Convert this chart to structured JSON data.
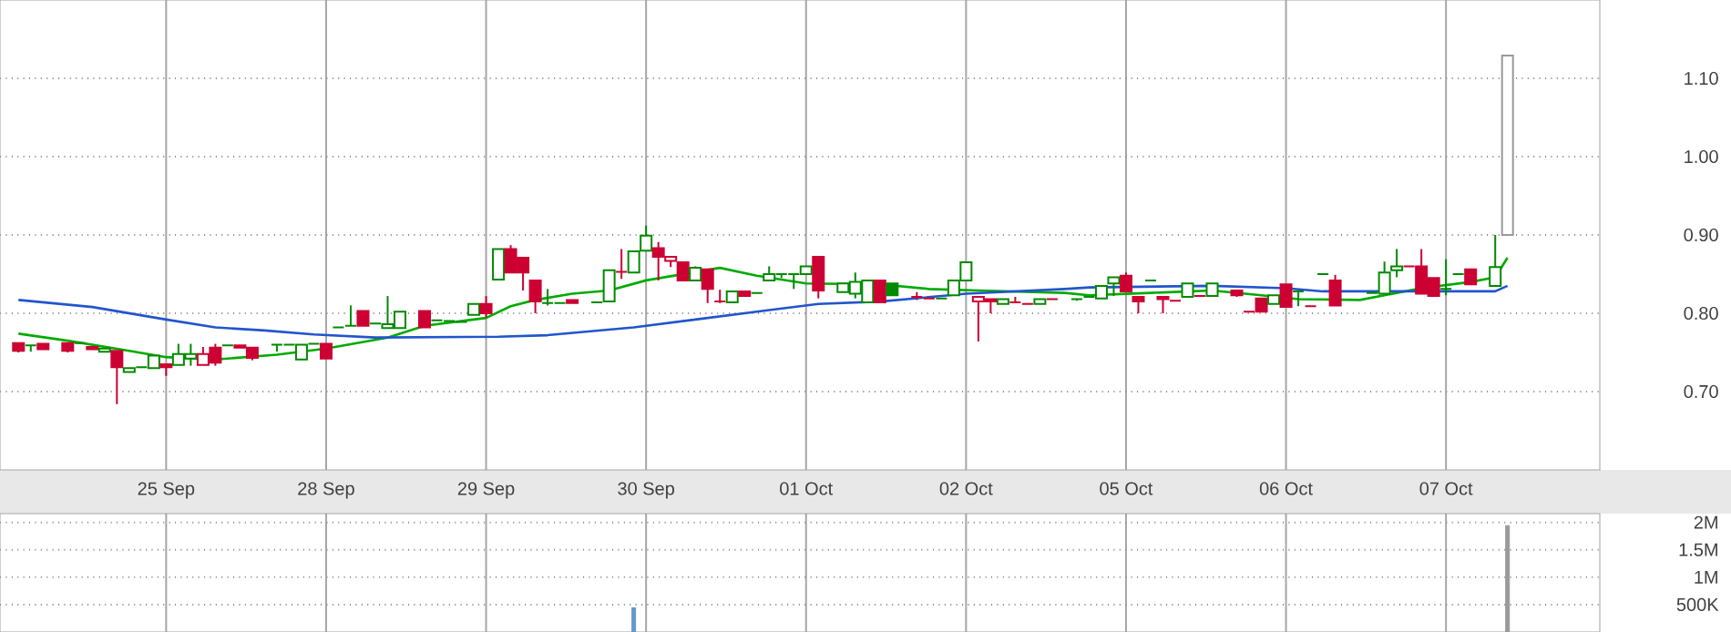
{
  "chart_data": [
    {
      "type": "candlestick",
      "categories": [
        null,
        null,
        null,
        null,
        null,
        null,
        null,
        null,
        null,
        null,
        null,
        null,
        null,
        "25 Sep",
        null,
        null,
        null,
        null,
        null,
        null,
        null,
        null,
        null,
        null,
        null,
        null,
        "28 Sep",
        null,
        null,
        null,
        null,
        null,
        null,
        null,
        null,
        null,
        null,
        null,
        null,
        "29 Sep",
        null,
        null,
        null,
        null,
        null,
        null,
        null,
        null,
        null,
        null,
        null,
        null,
        "30 Sep",
        null,
        null,
        null,
        null,
        null,
        null,
        null,
        null,
        null,
        null,
        null,
        null,
        "01 Oct",
        null,
        null,
        null,
        null,
        null,
        null,
        null,
        null,
        null,
        null,
        null,
        null,
        "02 Oct",
        null,
        null,
        null,
        null,
        null,
        null,
        null,
        null,
        null,
        null,
        null,
        null,
        "05 Oct",
        null,
        null,
        null,
        null,
        null,
        null,
        null,
        null,
        null,
        null,
        null,
        null,
        "06 Oct",
        null,
        null,
        null,
        null,
        null,
        null,
        null,
        null,
        null,
        null,
        null,
        null,
        "07 Oct",
        null,
        null,
        null,
        null,
        null,
        null,
        null,
        null,
        null,
        null,
        null,
        null
      ],
      "ohlc": [
        null,
        [
          0.762,
          0.762,
          0.75,
          0.752
        ],
        [
          0.759,
          0.759,
          0.751,
          0.759
        ],
        [
          0.761,
          0.761,
          0.754,
          0.754
        ],
        null,
        [
          0.762,
          0.762,
          0.75,
          0.752
        ],
        [
          0.762,
          0.762,
          0.762,
          0.762
        ],
        [
          0.757,
          0.757,
          0.754,
          0.754
        ],
        [
          0.751,
          0.755,
          0.751,
          0.755
        ],
        [
          0.752,
          0.752,
          0.684,
          0.731
        ],
        [
          0.725,
          0.73,
          0.725,
          0.73
        ],
        [
          0.731,
          0.731,
          0.731,
          0.731
        ],
        [
          0.73,
          0.746,
          0.73,
          0.746
        ],
        [
          0.735,
          0.735,
          0.72,
          0.731
        ],
        [
          0.734,
          0.761,
          0.734,
          0.748
        ],
        [
          0.742,
          0.761,
          0.733,
          0.748
        ],
        [
          0.734,
          0.757,
          0.734,
          0.748
        ],
        [
          0.756,
          0.761,
          0.733,
          0.737
        ],
        [
          0.759,
          0.759,
          0.759,
          0.759
        ],
        [
          0.759,
          0.759,
          0.756,
          0.756
        ],
        [
          0.756,
          0.756,
          0.74,
          0.743
        ],
        null,
        [
          0.76,
          0.76,
          0.751,
          0.76
        ],
        [
          0.76,
          0.76,
          0.76,
          0.76
        ],
        [
          0.741,
          0.76,
          0.741,
          0.76
        ],
        [
          0.761,
          0.761,
          0.761,
          0.761
        ],
        [
          0.761,
          0.761,
          0.742,
          0.742
        ],
        [
          0.782,
          0.782,
          0.782,
          0.782
        ],
        [
          0.784,
          0.81,
          0.784,
          0.784
        ],
        [
          0.803,
          0.803,
          0.784,
          0.784
        ],
        [
          0.787,
          0.787,
          0.787,
          0.787
        ],
        [
          0.781,
          0.822,
          0.781,
          0.786
        ],
        [
          0.781,
          0.802,
          0.781,
          0.802
        ],
        null,
        [
          0.803,
          0.803,
          0.782,
          0.782
        ],
        [
          0.791,
          0.791,
          0.791,
          0.791
        ],
        [
          0.79,
          0.79,
          0.79,
          0.79
        ],
        [
          0.789,
          0.789,
          0.789,
          0.789
        ],
        [
          0.798,
          0.812,
          0.798,
          0.812
        ],
        [
          0.812,
          0.822,
          0.795,
          0.8
        ],
        [
          0.843,
          0.882,
          0.843,
          0.882
        ],
        [
          0.882,
          0.887,
          0.852,
          0.852
        ],
        [
          0.871,
          0.871,
          0.829,
          0.852
        ],
        [
          0.842,
          0.842,
          0.8,
          0.815
        ],
        [
          0.813,
          0.831,
          0.81,
          0.813
        ],
        [
          0.813,
          0.813,
          0.813,
          0.813
        ],
        [
          0.817,
          0.817,
          0.813,
          0.813
        ],
        null,
        [
          0.814,
          0.814,
          0.814,
          0.814
        ],
        [
          0.815,
          0.855,
          0.815,
          0.855
        ],
        [
          0.853,
          0.882,
          0.844,
          0.853
        ],
        [
          0.852,
          0.879,
          0.852,
          0.879
        ],
        [
          0.88,
          0.912,
          0.88,
          0.899
        ],
        [
          0.883,
          0.891,
          0.842,
          0.872
        ],
        [
          0.867,
          0.872,
          0.859,
          0.872
        ],
        [
          0.865,
          0.865,
          0.842,
          0.842
        ],
        [
          0.842,
          0.86,
          0.842,
          0.858
        ],
        [
          0.856,
          0.856,
          0.813,
          0.831
        ],
        [
          0.815,
          0.83,
          0.813,
          0.815
        ],
        [
          0.814,
          0.828,
          0.814,
          0.828
        ],
        [
          0.828,
          0.828,
          0.822,
          0.822
        ],
        [
          0.826,
          0.826,
          0.826,
          0.826
        ],
        [
          0.842,
          0.86,
          0.842,
          0.85
        ],
        [
          0.85,
          0.85,
          0.845,
          0.85
        ],
        [
          0.85,
          0.85,
          0.831,
          0.85
        ],
        [
          0.85,
          0.86,
          0.85,
          0.86
        ],
        [
          0.872,
          0.872,
          0.819,
          0.829
        ],
        null,
        [
          0.827,
          0.838,
          0.827,
          0.838
        ],
        [
          0.825,
          0.852,
          0.819,
          0.84
        ],
        [
          0.814,
          0.842,
          0.814,
          0.842
        ],
        [
          0.842,
          0.842,
          0.814,
          0.814
        ],
        [
          0.838,
          0.838,
          0.823,
          0.823
        ],
        null,
        [
          0.821,
          0.827,
          0.817,
          0.821
        ],
        [
          0.819,
          0.819,
          0.819,
          0.819
        ],
        [
          0.819,
          0.819,
          0.819,
          0.819
        ],
        [
          0.823,
          0.842,
          0.823,
          0.842
        ],
        [
          0.842,
          0.865,
          0.842,
          0.865
        ],
        [
          0.815,
          0.821,
          0.764,
          0.821
        ],
        [
          0.818,
          0.818,
          0.8,
          0.815
        ],
        [
          0.812,
          0.818,
          0.812,
          0.818
        ],
        [
          0.814,
          0.821,
          0.814,
          0.814
        ],
        [
          0.812,
          0.812,
          0.812,
          0.812
        ],
        [
          0.812,
          0.818,
          0.812,
          0.818
        ],
        [
          0.818,
          0.818,
          0.818,
          0.818
        ],
        null,
        [
          0.818,
          0.818,
          0.816,
          0.818
        ],
        [
          0.821,
          0.821,
          0.821,
          0.821
        ],
        [
          0.819,
          0.835,
          0.819,
          0.835
        ],
        [
          0.838,
          0.846,
          0.822,
          0.846
        ],
        [
          0.848,
          0.852,
          0.828,
          0.828
        ],
        [
          0.821,
          0.821,
          0.8,
          0.815
        ],
        [
          0.842,
          0.842,
          0.842,
          0.842
        ],
        [
          0.821,
          0.821,
          0.8,
          0.818
        ],
        [
          0.816,
          0.816,
          0.816,
          0.816
        ],
        [
          0.821,
          0.838,
          0.821,
          0.838
        ],
        [
          0.822,
          0.822,
          0.822,
          0.822
        ],
        [
          0.822,
          0.838,
          0.822,
          0.838
        ],
        null,
        [
          0.829,
          0.829,
          0.821,
          0.823
        ],
        [
          0.802,
          0.802,
          0.802,
          0.802
        ],
        [
          0.819,
          0.819,
          0.802,
          0.802
        ],
        [
          0.812,
          0.823,
          0.812,
          0.823
        ],
        [
          0.837,
          0.837,
          0.808,
          0.808
        ],
        [
          0.828,
          0.828,
          0.809,
          0.828
        ],
        [
          0.809,
          0.809,
          0.809,
          0.809
        ],
        [
          0.85,
          0.85,
          0.85,
          0.85
        ],
        [
          0.842,
          0.849,
          0.81,
          0.81
        ],
        null,
        null,
        [
          0.826,
          0.826,
          0.826,
          0.826
        ],
        [
          0.825,
          0.866,
          0.825,
          0.852
        ],
        [
          0.855,
          0.882,
          0.846,
          0.86
        ],
        [
          0.86,
          0.86,
          0.86,
          0.86
        ],
        [
          0.86,
          0.882,
          0.825,
          0.825
        ],
        [
          0.845,
          0.845,
          0.822,
          0.822
        ],
        [
          0.831,
          0.869,
          0.823,
          0.831
        ],
        [
          0.85,
          0.85,
          0.85,
          0.85
        ],
        [
          0.856,
          0.856,
          0.837,
          0.837
        ],
        null,
        [
          0.835,
          0.9,
          0.835,
          0.859
        ],
        [
          0.9,
          1.129,
          0.9,
          1.129
        ],
        null,
        null,
        null,
        null,
        null,
        null,
        null
      ],
      "colors": [
        null,
        "#cc0033",
        "#008a00",
        "#cc0033",
        null,
        "#cc0033",
        "#008a00",
        "#cc0033",
        "#008a00",
        "#cc0033",
        "#008a00",
        "#008a00",
        "#008a00",
        "#cc0033",
        "#008a00",
        "#008a00",
        "#cc0033",
        "#cc0033",
        "#008a00",
        "#cc0033",
        "#cc0033",
        null,
        "#008a00",
        "#008a00",
        "#008a00",
        "#008a00",
        "#cc0033",
        "#008a00",
        "#008a00",
        "#cc0033",
        "#008a00",
        "#008a00",
        "#008a00",
        null,
        "#cc0033",
        "#008a00",
        "#008a00",
        "#008a00",
        "#008a00",
        "#cc0033",
        "#008a00",
        "#cc0033",
        "#cc0033",
        "#cc0033",
        "#008a00",
        "#008a00",
        "#cc0033",
        null,
        "#008a00",
        "#008a00",
        "#cc0033",
        "#008a00",
        "#008a00",
        "#cc0033",
        "#cc0033",
        "#cc0033",
        "#008a00",
        "#cc0033",
        "#cc0033",
        "#008a00",
        "#cc0033",
        "#008a00",
        "#008a00",
        "#008a00",
        "#008a00",
        "#008a00",
        "#cc0033",
        null,
        "#008a00",
        "#008a00",
        "#008a00",
        "#cc0033",
        "#008a00",
        null,
        "#cc0033",
        "#cc0033",
        "#008a00",
        "#008a00",
        "#008a00",
        "#cc0033",
        "#cc0033",
        "#008a00",
        "#cc0033",
        "#cc0033",
        "#008a00",
        "#cc0033",
        null,
        "#008a00",
        "#008a00",
        "#008a00",
        "#008a00",
        "#cc0033",
        "#cc0033",
        "#008a00",
        "#cc0033",
        "#cc0033",
        "#008a00",
        "#cc0033",
        "#008a00",
        null,
        "#cc0033",
        "#cc0033",
        "#cc0033",
        "#008a00",
        "#cc0033",
        "#008a00",
        "#cc0033",
        "#008a00",
        "#cc0033",
        null,
        null,
        "#008a00",
        "#008a00",
        "#008a00",
        "#cc0033",
        "#cc0033",
        "#cc0033",
        "#008a00",
        "#008a00",
        "#cc0033",
        null,
        "#008a00",
        "#999999",
        null,
        null,
        null,
        null,
        null,
        null,
        null
      ],
      "series": [
        {
          "type": "line",
          "color": "#00aa00",
          "values": [
            null,
            0.774,
            null,
            null,
            null,
            0.765,
            null,
            null,
            null,
            null,
            0.752,
            null,
            null,
            0.744,
            null,
            null,
            null,
            0.741,
            null,
            null,
            null,
            null,
            0.747,
            null,
            null,
            null,
            0.755,
            null,
            null,
            null,
            null,
            0.769,
            null,
            null,
            0.784,
            null,
            null,
            null,
            null,
            0.794,
            null,
            0.809,
            null,
            0.817,
            null,
            null,
            0.825,
            null,
            null,
            0.829,
            null,
            null,
            0.842,
            null,
            null,
            0.85,
            null,
            null,
            0.858,
            null,
            null,
            0.848,
            null,
            null,
            null,
            0.838,
            null,
            null,
            null,
            null,
            null,
            0.837,
            null,
            null,
            null,
            0.831,
            null,
            null,
            null,
            0.829,
            null,
            null,
            null,
            null,
            null,
            null,
            0.826,
            null,
            0.823,
            null,
            null,
            null,
            null,
            0.826,
            null,
            null,
            null,
            null,
            0.829,
            null,
            null,
            null,
            0.823,
            null,
            null,
            0.818,
            null,
            null,
            null,
            null,
            0.817,
            null,
            null,
            0.826,
            null,
            0.832,
            null,
            null,
            null,
            0.84,
            null,
            0.846,
            0.871,
            null,
            null,
            null,
            null,
            null,
            null,
            null
          ]
        },
        {
          "type": "line",
          "color": "#2255cc",
          "values": [
            null,
            0.817,
            null,
            null,
            null,
            null,
            null,
            0.808,
            null,
            null,
            null,
            null,
            null,
            0.792,
            null,
            null,
            null,
            0.782,
            null,
            null,
            null,
            0.778,
            null,
            null,
            null,
            0.773,
            null,
            null,
            null,
            null,
            0.769,
            null,
            null,
            null,
            null,
            null,
            null,
            null,
            null,
            null,
            0.77,
            null,
            null,
            null,
            0.772,
            null,
            null,
            null,
            null,
            null,
            null,
            0.782,
            null,
            null,
            null,
            null,
            0.792,
            null,
            null,
            null,
            null,
            null,
            0.804,
            null,
            null,
            null,
            0.812,
            null,
            null,
            null,
            null,
            0.815,
            null,
            null,
            null,
            null,
            0.822,
            null,
            0.825,
            null,
            null,
            null,
            null,
            null,
            null,
            null,
            0.831,
            null,
            0.833,
            null,
            null,
            null,
            null,
            null,
            null,
            null,
            null,
            null,
            0.835,
            null,
            null,
            null,
            null,
            null,
            0.832,
            null,
            null,
            0.828,
            null,
            null,
            null,
            null,
            null,
            null,
            null,
            null,
            null,
            null,
            null,
            null,
            null,
            0.828,
            0.835,
            null,
            null,
            null,
            null,
            null,
            null,
            null
          ]
        }
      ],
      "ylim": [
        0.6,
        1.2
      ],
      "yticks": [
        {
          "value": 0.7,
          "label": "0.70"
        },
        {
          "value": 0.8,
          "label": "0.80"
        },
        {
          "value": 0.9,
          "label": "0.90"
        },
        {
          "value": 1.0,
          "label": "1.00"
        },
        {
          "value": 1.1,
          "label": "1.10"
        }
      ],
      "grid": true
    },
    {
      "type": "bar",
      "categories": [
        null,
        null,
        null,
        null,
        null,
        null,
        null,
        null,
        null,
        null,
        null,
        null,
        null,
        null,
        null,
        null,
        null,
        null,
        null,
        null,
        null,
        null,
        null,
        null,
        null,
        null,
        null,
        null,
        null,
        null,
        null,
        null,
        null,
        null,
        null,
        null,
        null,
        null,
        null,
        null,
        null,
        null,
        null,
        null,
        null,
        null,
        null,
        null,
        null,
        null,
        null,
        null,
        null,
        null,
        null,
        null,
        null,
        null,
        null,
        null,
        null,
        null,
        null,
        null,
        null,
        null,
        null,
        null,
        null,
        null,
        null,
        null,
        null,
        null,
        null,
        null,
        null,
        null,
        null,
        null,
        null,
        null,
        null,
        null,
        null,
        null,
        null,
        null,
        null,
        null,
        null,
        null,
        null,
        null,
        null,
        null,
        null,
        null,
        null,
        null,
        null,
        null,
        null,
        null,
        null,
        null,
        null,
        null,
        null,
        null,
        null,
        null,
        null,
        null,
        null,
        null,
        null,
        null,
        null,
        null,
        null,
        null,
        null,
        null,
        null,
        null,
        null,
        null,
        null,
        null
      ],
      "values": [
        null,
        null,
        null,
        null,
        null,
        null,
        null,
        null,
        null,
        null,
        null,
        null,
        null,
        null,
        null,
        null,
        null,
        null,
        null,
        null,
        null,
        null,
        null,
        null,
        null,
        null,
        null,
        null,
        null,
        null,
        null,
        null,
        null,
        null,
        null,
        null,
        null,
        null,
        null,
        null,
        null,
        null,
        null,
        null,
        null,
        null,
        null,
        null,
        null,
        null,
        null,
        440000,
        null,
        null,
        null,
        null,
        null,
        null,
        null,
        null,
        null,
        null,
        null,
        null,
        null,
        null,
        null,
        null,
        null,
        null,
        null,
        null,
        null,
        null,
        null,
        null,
        null,
        null,
        null,
        null,
        null,
        null,
        null,
        null,
        null,
        null,
        null,
        null,
        null,
        null,
        null,
        null,
        null,
        null,
        null,
        null,
        null,
        null,
        null,
        null,
        null,
        null,
        null,
        null,
        null,
        null,
        null,
        null,
        null,
        null,
        null,
        null,
        null,
        null,
        null,
        null,
        null,
        null,
        null,
        null,
        null,
        null,
        1940000,
        null,
        null,
        null,
        null,
        null,
        null,
        null
      ],
      "colors": [
        null,
        null,
        null,
        null,
        null,
        null,
        null,
        null,
        null,
        null,
        null,
        null,
        null,
        null,
        null,
        null,
        null,
        null,
        null,
        null,
        null,
        null,
        null,
        null,
        null,
        null,
        null,
        null,
        null,
        null,
        null,
        null,
        null,
        null,
        null,
        null,
        null,
        null,
        null,
        null,
        null,
        null,
        null,
        null,
        null,
        null,
        null,
        null,
        null,
        null,
        null,
        "#6699cc",
        null,
        null,
        null,
        null,
        null,
        null,
        null,
        null,
        null,
        null,
        null,
        null,
        null,
        null,
        null,
        null,
        null,
        null,
        null,
        null,
        null,
        null,
        null,
        null,
        null,
        null,
        null,
        null,
        null,
        null,
        null,
        null,
        null,
        null,
        null,
        null,
        null,
        null,
        null,
        null,
        null,
        null,
        null,
        null,
        null,
        null,
        null,
        null,
        null,
        null,
        null,
        null,
        null,
        null,
        null,
        null,
        null,
        null,
        null,
        null,
        null,
        null,
        null,
        null,
        null,
        null,
        null,
        null,
        null,
        null,
        "#999999",
        null,
        null,
        null,
        null,
        null,
        null,
        null
      ],
      "ylim": [
        0,
        2160000
      ],
      "yticks": [
        {
          "value": 500000,
          "label": "500K"
        },
        {
          "value": 1000000,
          "label": "1M"
        },
        {
          "value": 1500000,
          "label": "1.5M"
        },
        {
          "value": 2000000,
          "label": "2M"
        }
      ],
      "grid": true
    }
  ]
}
